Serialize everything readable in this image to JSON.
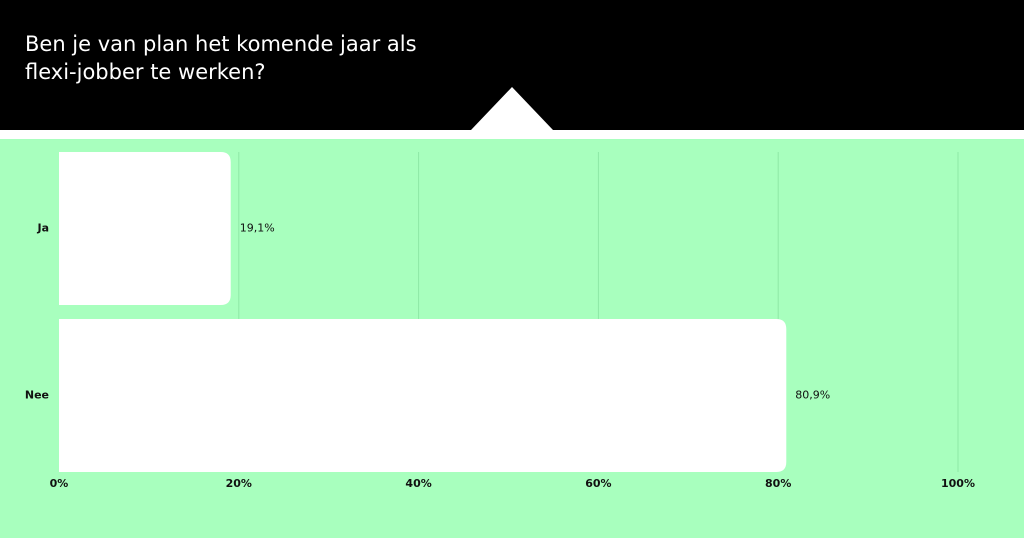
{
  "chart_data": {
    "type": "bar",
    "orientation": "horizontal",
    "title": [
      "Ben je van plan het komende jaar als",
      "flexi-jobber te werken?"
    ],
    "categories": [
      "Ja",
      "Nee"
    ],
    "values": [
      19.1,
      80.9
    ],
    "value_labels": [
      "19,1%",
      "80,9%"
    ],
    "color": "#ffffff",
    "xlim": [
      0,
      100
    ],
    "xticks": [
      {
        "value": 0,
        "label": "0%"
      },
      {
        "value": 20,
        "label": "20%"
      },
      {
        "value": 40,
        "label": "40%"
      },
      {
        "value": 60,
        "label": "60%"
      },
      {
        "value": 80,
        "label": "80%"
      },
      {
        "value": 100,
        "label": "100%"
      }
    ],
    "grid": true
  }
}
